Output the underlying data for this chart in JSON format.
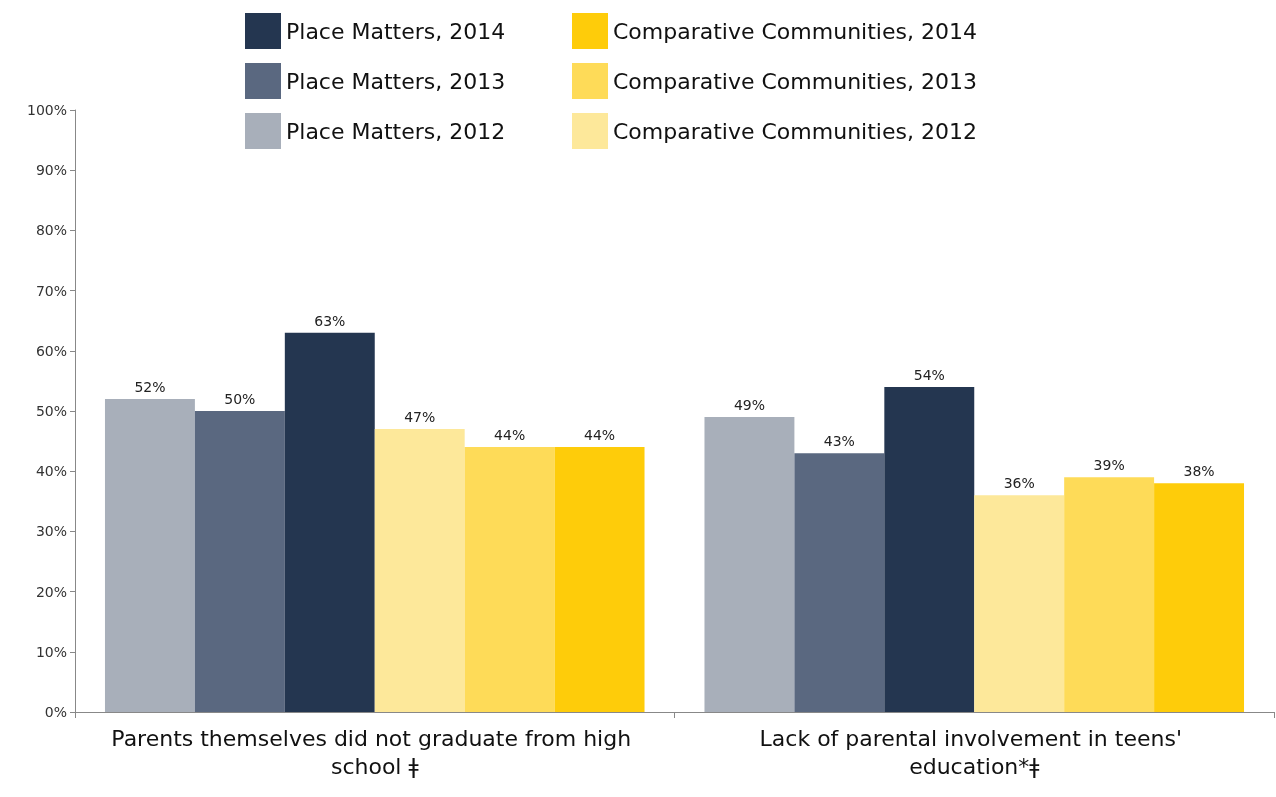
{
  "chart_data": {
    "type": "bar",
    "categories": [
      "Parents themselves did not graduate from high school ǂ",
      "Lack of parental involvement in teens' education*ǂ"
    ],
    "series": [
      {
        "name": "Place Matters, 2012",
        "color": "#a8afba",
        "values": [
          52,
          49
        ],
        "value_labels": [
          "52%",
          "49%"
        ]
      },
      {
        "name": "Place Matters, 2013",
        "color": "#5a6880",
        "values": [
          50,
          43
        ],
        "value_labels": [
          "50%",
          "43%"
        ]
      },
      {
        "name": "Place Matters, 2014",
        "color": "#243650",
        "values": [
          63,
          54
        ],
        "value_labels": [
          "63%",
          "54%"
        ]
      },
      {
        "name": "Comparative Communities, 2012",
        "color": "#fde89a",
        "values": [
          47,
          36
        ],
        "value_labels": [
          "47%",
          "36%"
        ]
      },
      {
        "name": "Comparative Communities, 2013",
        "color": "#fedb58",
        "values": [
          44,
          39
        ],
        "value_labels": [
          "44%",
          "39%"
        ]
      },
      {
        "name": "Comparative Communities, 2014",
        "color": "#fecc0a",
        "values": [
          44,
          38
        ],
        "value_labels": [
          "44%",
          "38%"
        ]
      }
    ],
    "ylim": [
      0,
      100
    ],
    "yticks": [
      {
        "value": 0,
        "label": "0%"
      },
      {
        "value": 10,
        "label": "10%"
      },
      {
        "value": 20,
        "label": "20%"
      },
      {
        "value": 30,
        "label": "30%"
      },
      {
        "value": 40,
        "label": "40%"
      },
      {
        "value": 50,
        "label": "50%"
      },
      {
        "value": 60,
        "label": "60%"
      },
      {
        "value": 70,
        "label": "70%"
      },
      {
        "value": 80,
        "label": "80%"
      },
      {
        "value": 90,
        "label": "90%"
      },
      {
        "value": 100,
        "label": "100%"
      }
    ],
    "grid": false,
    "legend": "top"
  }
}
